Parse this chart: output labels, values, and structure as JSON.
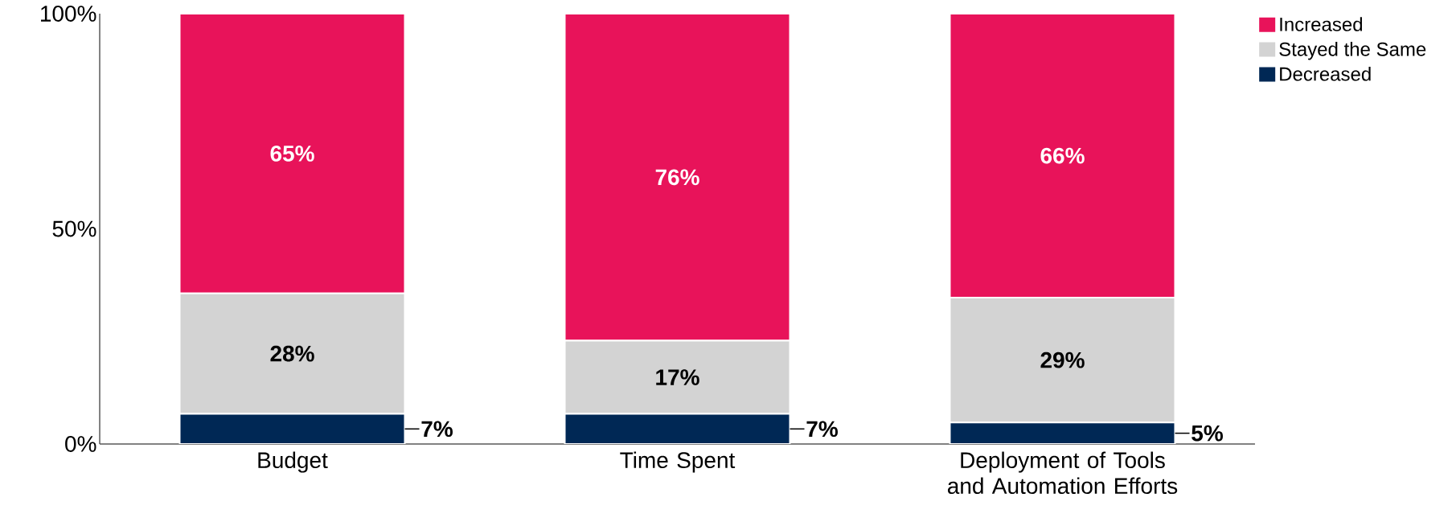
{
  "chart_data": {
    "type": "bar",
    "stacked": true,
    "categories": [
      "Budget",
      "Time Spent",
      "Deployment of Tools and Automation Efforts"
    ],
    "series": [
      {
        "name": "Decreased",
        "color": "#002855",
        "values": [
          7,
          7,
          5
        ],
        "value_labels": [
          "7%",
          "7%",
          "5%"
        ]
      },
      {
        "name": "Stayed the Same",
        "color": "#d3d3d3",
        "values": [
          28,
          17,
          29
        ],
        "value_labels": [
          "28%",
          "17%",
          "29%"
        ]
      },
      {
        "name": "Increased",
        "color": "#e8135a",
        "values": [
          65,
          76,
          66
        ],
        "value_labels": [
          "65%",
          "76%",
          "66%"
        ]
      }
    ],
    "ylim": [
      0,
      100
    ],
    "yticks": [
      {
        "value": 0,
        "label": "0%"
      },
      {
        "value": 50,
        "label": "50%"
      },
      {
        "value": 100,
        "label": "100%"
      }
    ],
    "grid": false,
    "legend": "top right"
  }
}
